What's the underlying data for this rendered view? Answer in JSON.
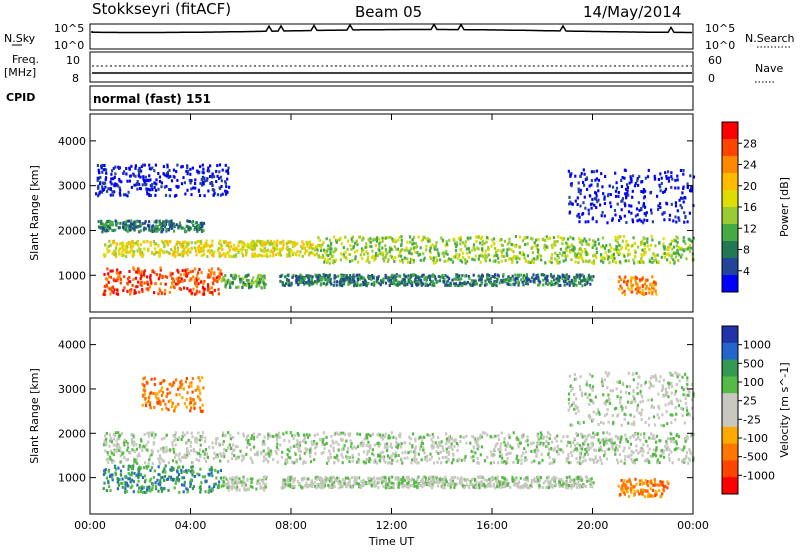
{
  "header": {
    "station": "Stokkseyri (fitACF)",
    "beam": "Beam 05",
    "date": "14/May/2014"
  },
  "strips": {
    "nsky_label": "N.Sky",
    "nsky_ticks": [
      "10^5",
      "10^0"
    ],
    "nsearch_label": "N.Search",
    "nsearch_ticks": [
      "10^5",
      "10^0"
    ],
    "freq_label": "Freq.",
    "freq_unit": "[MHz]",
    "freq_ticks": [
      "10",
      "8"
    ],
    "nave_label": "Nave",
    "nave_ticks": [
      "60",
      "0"
    ],
    "cpid_label": "CPID",
    "cpid_value": "normal (fast) 151"
  },
  "chart_data": [
    {
      "type": "heatmap",
      "title": "",
      "ylabel": "Slant Range [km]",
      "xlabel": "",
      "ylim": [
        180,
        4600
      ],
      "xlim": [
        "00:00",
        "24:00"
      ],
      "x_ticks": [
        "00:00",
        "04:00",
        "08:00",
        "12:00",
        "16:00",
        "20:00",
        "00:00"
      ],
      "y_ticks": [
        "1000",
        "2000",
        "3000",
        "4000"
      ],
      "colorbar": {
        "label": "Power [dB]",
        "ticks": [
          "28",
          "24",
          "20",
          "16",
          "12",
          "8",
          "4"
        ],
        "colors": [
          "#ff0000",
          "#ff4400",
          "#ff8800",
          "#ffbb00",
          "#dddd00",
          "#99cc33",
          "#44aa44",
          "#227755",
          "#224499",
          "#0000ff"
        ]
      },
      "scatter_bands": [
        {
          "t": [
            0.5,
            5.2
          ],
          "r": [
            600,
            1200
          ],
          "color_index": 1
        },
        {
          "t": [
            5.2,
            7.0
          ],
          "r": [
            750,
            1050
          ],
          "color_index": 6
        },
        {
          "t": [
            0.5,
            9.0
          ],
          "r": [
            1450,
            1800
          ],
          "color_index": 4
        },
        {
          "t": [
            9.0,
            24.0
          ],
          "r": [
            1300,
            1900
          ],
          "color_index": 5
        },
        {
          "t": [
            0.3,
            4.5
          ],
          "r": [
            2000,
            2250
          ],
          "color_index": 7
        },
        {
          "t": [
            7.5,
            20.0
          ],
          "r": [
            800,
            1050
          ],
          "color_index": 7
        },
        {
          "t": [
            21.0,
            22.5
          ],
          "r": [
            600,
            1000
          ],
          "color_index": 2
        },
        {
          "t": [
            0.2,
            5.5
          ],
          "r": [
            2800,
            3500
          ],
          "color_index": 9
        },
        {
          "t": [
            19.0,
            24.0
          ],
          "r": [
            2200,
            3400
          ],
          "color_index": 9
        }
      ]
    },
    {
      "type": "heatmap",
      "title": "",
      "ylabel": "Slant Range [km]",
      "xlabel": "Time UT",
      "ylim": [
        180,
        4600
      ],
      "xlim": [
        "00:00",
        "24:00"
      ],
      "x_ticks": [
        "00:00",
        "04:00",
        "08:00",
        "12:00",
        "16:00",
        "20:00",
        "00:00"
      ],
      "y_ticks": [
        "1000",
        "2000",
        "3000",
        "4000"
      ],
      "colorbar": {
        "label": "Velocity [m s^-1]",
        "ticks": [
          "1000",
          "500",
          "100",
          "25",
          "-25",
          "-100",
          "-500",
          "-1000"
        ],
        "colors": [
          "#2233aa",
          "#2266cc",
          "#339955",
          "#55bb44",
          "#c8c8c0",
          "#c8c8c0",
          "#ffaa00",
          "#ff7700",
          "#ff4400",
          "#ff0000"
        ]
      },
      "scatter_bands": [
        {
          "t": [
            0.5,
            5.2
          ],
          "r": [
            700,
            1300
          ],
          "color_index": 2
        },
        {
          "t": [
            5.2,
            7.0
          ],
          "r": [
            750,
            1050
          ],
          "color_index": 4
        },
        {
          "t": [
            0.5,
            24.0
          ],
          "r": [
            1350,
            2050
          ],
          "color_index": 4
        },
        {
          "t": [
            7.5,
            20.0
          ],
          "r": [
            800,
            1050
          ],
          "color_index": 4
        },
        {
          "t": [
            21.0,
            23.0
          ],
          "r": [
            600,
            1000
          ],
          "color_index": 7
        },
        {
          "t": [
            2.0,
            4.5
          ],
          "r": [
            2500,
            3300
          ],
          "color_index": 7
        },
        {
          "t": [
            19.0,
            24.0
          ],
          "r": [
            2200,
            3400
          ],
          "color_index": 4
        }
      ]
    }
  ],
  "colors": {
    "axis": "#000000",
    "frame": "#000000"
  }
}
